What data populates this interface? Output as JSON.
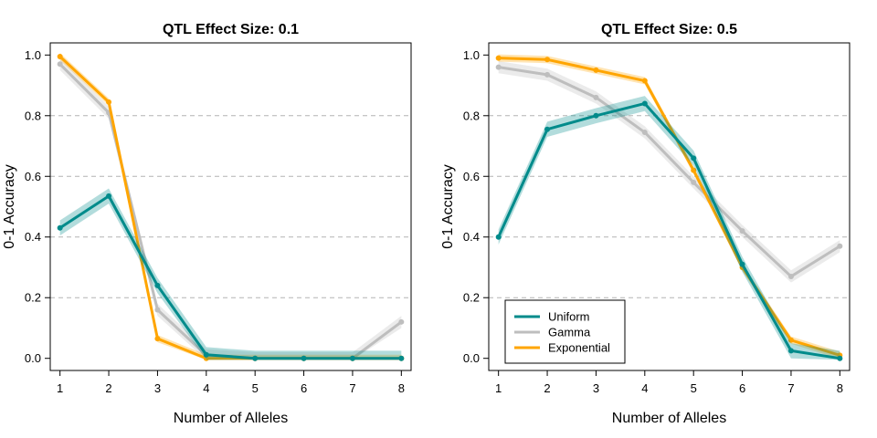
{
  "chart_data": [
    {
      "type": "line",
      "title": "QTL Effect Size: 0.1",
      "xlabel": "Number of Alleles",
      "ylabel": "0-1 Accuracy",
      "xlim": [
        0.8,
        8.2
      ],
      "ylim": [
        -0.04,
        1.04
      ],
      "x_ticks": [
        1,
        2,
        3,
        4,
        5,
        6,
        7,
        8
      ],
      "y_ticks": [
        0.0,
        0.2,
        0.4,
        0.6,
        0.8,
        1.0
      ],
      "y_tick_labels": [
        "0.0",
        "0.2",
        "0.4",
        "0.6",
        "0.8",
        "1.0"
      ],
      "grid": "horizontal dashed at 0.2, 0.4, 0.6, 0.8",
      "x": [
        1,
        2,
        3,
        4,
        5,
        6,
        7,
        8
      ],
      "series": [
        {
          "name": "Gamma",
          "color": "#bebebe",
          "values": [
            0.97,
            0.81,
            0.16,
            0.01,
            0.0,
            0.0,
            0.0,
            0.12
          ],
          "band": 0.02
        },
        {
          "name": "Exponential",
          "color": "#ffa500",
          "values": [
            0.995,
            0.845,
            0.065,
            0.0,
            0.0,
            0.0,
            0.0,
            0.0
          ],
          "band": 0.012
        },
        {
          "name": "Uniform",
          "color": "#008b8b",
          "values": [
            0.43,
            0.535,
            0.24,
            0.012,
            0.0,
            0.0,
            0.0,
            0.0
          ],
          "band": 0.025
        }
      ]
    },
    {
      "type": "line",
      "title": "QTL Effect Size: 0.5",
      "xlabel": "Number of Alleles",
      "ylabel": "0-1 Accuracy",
      "xlim": [
        0.8,
        8.2
      ],
      "ylim": [
        -0.04,
        1.04
      ],
      "x_ticks": [
        1,
        2,
        3,
        4,
        5,
        6,
        7,
        8
      ],
      "y_ticks": [
        0.0,
        0.2,
        0.4,
        0.6,
        0.8,
        1.0
      ],
      "y_tick_labels": [
        "0.0",
        "0.2",
        "0.4",
        "0.6",
        "0.8",
        "1.0"
      ],
      "grid": "horizontal dashed at 0.2, 0.4, 0.6, 0.8",
      "legend_position": "bottom-left",
      "x": [
        1,
        2,
        3,
        4,
        5,
        6,
        7,
        8
      ],
      "series": [
        {
          "name": "Gamma",
          "color": "#bebebe",
          "values": [
            0.96,
            0.935,
            0.86,
            0.745,
            0.58,
            0.42,
            0.27,
            0.37
          ],
          "band": 0.02
        },
        {
          "name": "Exponential",
          "color": "#ffa500",
          "values": [
            0.99,
            0.985,
            0.95,
            0.915,
            0.62,
            0.3,
            0.06,
            0.01
          ],
          "band": 0.012
        },
        {
          "name": "Uniform",
          "color": "#008b8b",
          "values": [
            0.4,
            0.755,
            0.8,
            0.84,
            0.66,
            0.31,
            0.025,
            0.0
          ],
          "band": 0.025
        }
      ]
    }
  ],
  "legend": {
    "items": [
      {
        "label": "Uniform",
        "color": "#008b8b"
      },
      {
        "label": "Gamma",
        "color": "#bebebe"
      },
      {
        "label": "Exponential",
        "color": "#ffa500"
      }
    ]
  }
}
